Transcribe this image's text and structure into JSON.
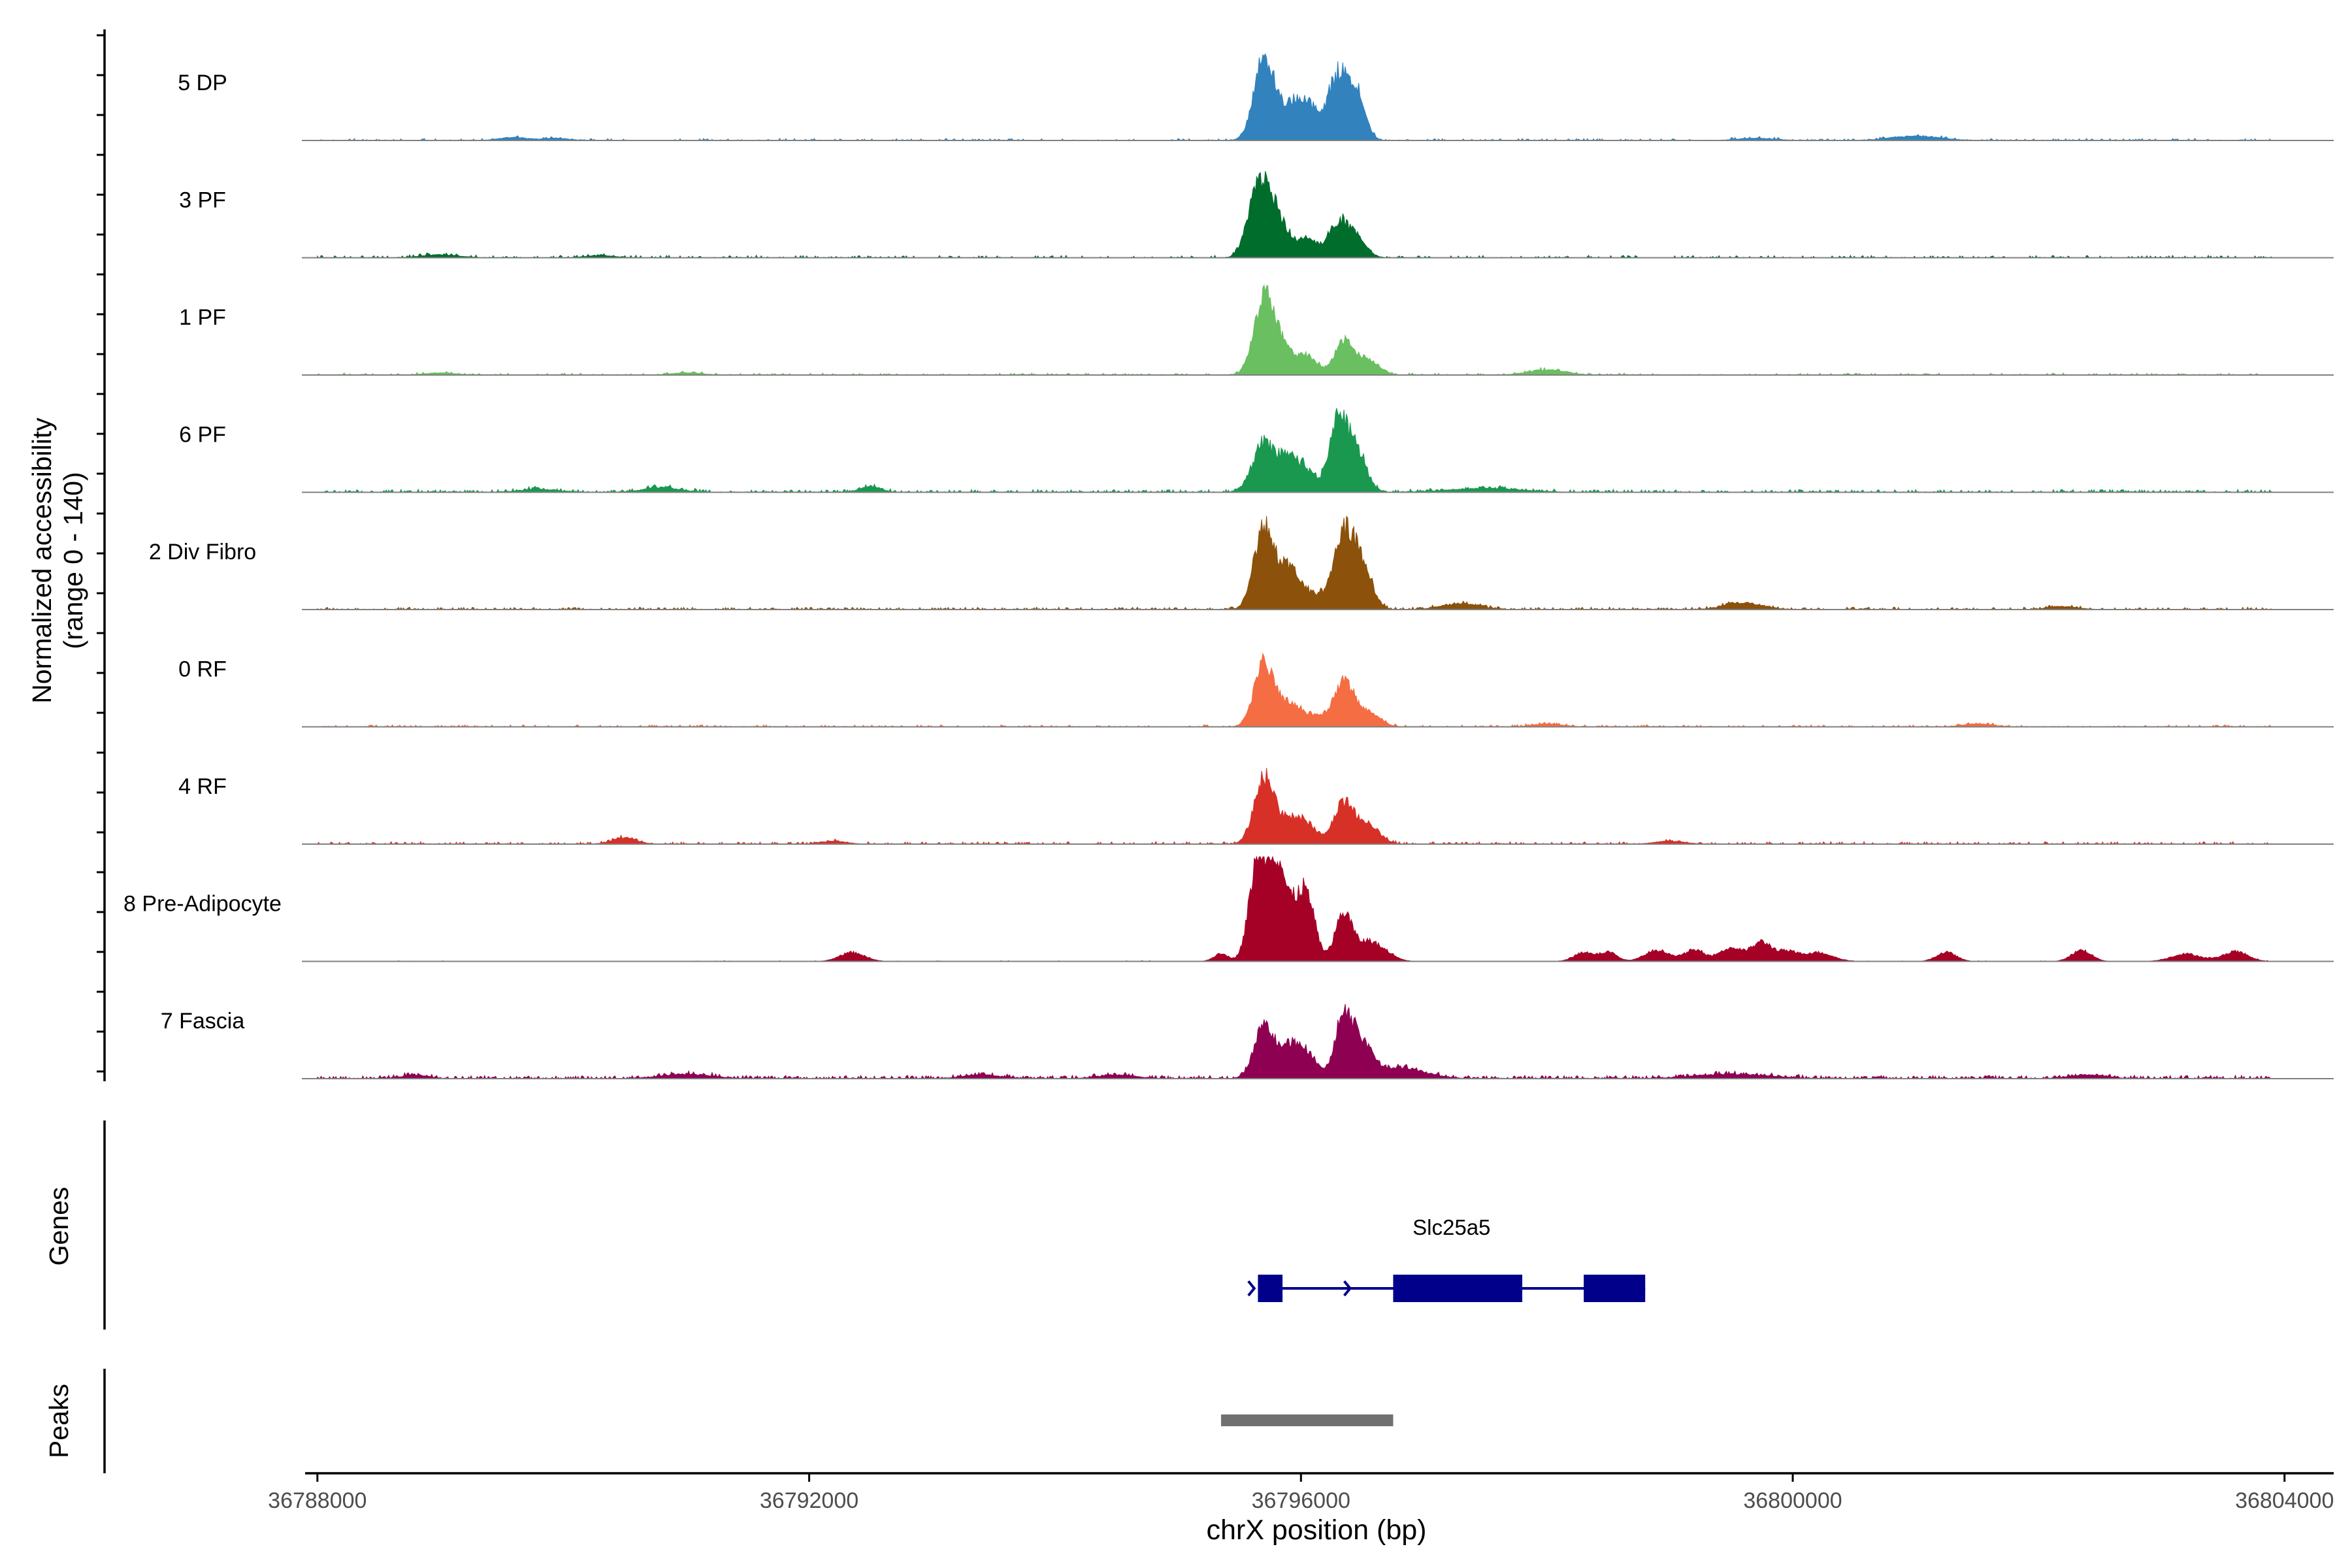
{
  "chart_data": {
    "type": "area",
    "subtype": "coverage-track",
    "y_axis_label_line1": "Normalized accessibility",
    "y_axis_label_line2": "(range 0 - 140)",
    "y_range": [
      0,
      140
    ],
    "x_axis_label": "chrX position (bp)",
    "x_range": [
      36787900,
      36804400
    ],
    "x_ticks": [
      36788000,
      36792000,
      36796000,
      36800000,
      36804000
    ],
    "x_tick_labels": [
      "36788000",
      "36792000",
      "36796000",
      "36800000",
      "36804000"
    ],
    "tracks": [
      {
        "name": "5 DP",
        "color": "#3282BD",
        "peaks": [
          [
            36795700,
            110,
            80
          ],
          [
            36795900,
            35,
            90
          ],
          [
            36796050,
            45,
            90
          ],
          [
            36796300,
            85,
            80
          ],
          [
            36796450,
            60,
            70
          ],
          [
            36789600,
            4,
            120
          ],
          [
            36789950,
            3,
            100
          ],
          [
            36801000,
            6,
            200
          ],
          [
            36799700,
            3,
            150
          ]
        ],
        "noise": 2.5,
        "noise_density": 0.25
      },
      {
        "name": "3 PF",
        "color": "#006D2C",
        "peaks": [
          [
            36795650,
            92,
            80
          ],
          [
            36795800,
            55,
            90
          ],
          [
            36796050,
            25,
            80
          ],
          [
            36796300,
            45,
            80
          ],
          [
            36796450,
            25,
            80
          ],
          [
            36789000,
            4,
            150
          ],
          [
            36790300,
            3,
            120
          ]
        ],
        "noise": 3,
        "noise_density": 0.3
      },
      {
        "name": "1 PF",
        "color": "#6ABF60",
        "peaks": [
          [
            36795700,
            100,
            80
          ],
          [
            36795850,
            35,
            80
          ],
          [
            36796050,
            25,
            80
          ],
          [
            36796350,
            45,
            80
          ],
          [
            36796550,
            20,
            90
          ],
          [
            36798000,
            7,
            150
          ],
          [
            36789000,
            3,
            120
          ],
          [
            36791000,
            3,
            120
          ]
        ],
        "noise": 2.5,
        "noise_density": 0.3
      },
      {
        "name": "6 PF",
        "color": "#1A9850",
        "peaks": [
          [
            36795700,
            65,
            90
          ],
          [
            36795900,
            40,
            80
          ],
          [
            36796050,
            25,
            80
          ],
          [
            36796300,
            95,
            70
          ],
          [
            36796450,
            55,
            80
          ],
          [
            36792500,
            8,
            80
          ],
          [
            36790800,
            6,
            150
          ],
          [
            36789800,
            4,
            150
          ],
          [
            36797500,
            5,
            300
          ]
        ],
        "noise": 3.5,
        "noise_density": 0.45
      },
      {
        "name": "2 Div Fibro",
        "color": "#8C510A",
        "peaks": [
          [
            36795700,
            110,
            80
          ],
          [
            36795900,
            50,
            80
          ],
          [
            36796100,
            20,
            120
          ],
          [
            36796350,
            95,
            80
          ],
          [
            36796500,
            55,
            80
          ],
          [
            36797300,
            8,
            150
          ],
          [
            36799600,
            9,
            150
          ],
          [
            36802200,
            4,
            120
          ]
        ],
        "noise": 3,
        "noise_density": 0.4
      },
      {
        "name": "0 RF",
        "color": "#F46D43",
        "peaks": [
          [
            36795700,
            85,
            80
          ],
          [
            36795900,
            30,
            80
          ],
          [
            36796100,
            15,
            100
          ],
          [
            36796350,
            60,
            80
          ],
          [
            36796550,
            20,
            90
          ],
          [
            36801500,
            4,
            120
          ],
          [
            36798000,
            4,
            120
          ]
        ],
        "noise": 2.5,
        "noise_density": 0.3
      },
      {
        "name": "4 RF",
        "color": "#D73027",
        "peaks": [
          [
            36795700,
            90,
            80
          ],
          [
            36795900,
            30,
            80
          ],
          [
            36796050,
            25,
            80
          ],
          [
            36796350,
            55,
            80
          ],
          [
            36796550,
            25,
            90
          ],
          [
            36790500,
            8,
            100
          ],
          [
            36792200,
            4,
            100
          ],
          [
            36799000,
            4,
            120
          ]
        ],
        "noise": 3,
        "noise_density": 0.35
      },
      {
        "name": "8 Pre-Adipocyte",
        "color": "#A50026",
        "peaks": [
          [
            36795650,
            135,
            70
          ],
          [
            36795800,
            125,
            70
          ],
          [
            36795950,
            50,
            80
          ],
          [
            36796050,
            70,
            70
          ],
          [
            36796350,
            65,
            70
          ],
          [
            36796550,
            25,
            80
          ],
          [
            36792350,
            12,
            100
          ],
          [
            36795350,
            10,
            60
          ],
          [
            36796700,
            10,
            80
          ],
          [
            36798300,
            12,
            80
          ],
          [
            36798500,
            12,
            70
          ],
          [
            36798900,
            15,
            100
          ],
          [
            36799200,
            15,
            80
          ],
          [
            36799500,
            18,
            100
          ],
          [
            36799750,
            25,
            80
          ],
          [
            36799950,
            12,
            80
          ],
          [
            36800200,
            12,
            120
          ],
          [
            36801250,
            12,
            80
          ],
          [
            36802350,
            15,
            80
          ],
          [
            36803200,
            10,
            120
          ],
          [
            36803600,
            13,
            100
          ]
        ],
        "noise": 1,
        "noise_density": 0.05
      },
      {
        "name": "7 Fascia",
        "color": "#8E0152",
        "peaks": [
          [
            36795700,
            70,
            80
          ],
          [
            36795900,
            40,
            80
          ],
          [
            36796050,
            30,
            80
          ],
          [
            36796350,
            85,
            70
          ],
          [
            36796500,
            40,
            80
          ],
          [
            36796800,
            15,
            200
          ],
          [
            36788800,
            5,
            100
          ],
          [
            36791000,
            6,
            200
          ],
          [
            36793400,
            5,
            150
          ],
          [
            36794500,
            5,
            150
          ],
          [
            36799500,
            6,
            300
          ],
          [
            36802400,
            5,
            150
          ]
        ],
        "noise": 4,
        "noise_density": 0.55
      }
    ],
    "genes": {
      "label": "Genes",
      "items": [
        {
          "name": "Slc25a5",
          "start": 36795650,
          "end": 36798800,
          "strand": "+",
          "exons": [
            [
              36795650,
              36795850
            ],
            [
              36796750,
              36797800
            ],
            [
              36798300,
              36798800
            ]
          ]
        }
      ]
    },
    "peak_track": {
      "label": "Peaks",
      "ranges": [
        [
          36795350,
          36796750
        ]
      ]
    }
  }
}
